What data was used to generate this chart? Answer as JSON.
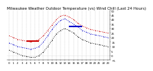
{
  "title": "Milwaukee Weather Outdoor Temperature (vs) Wind Chill (Last 24 Hours)",
  "bg_color": "#ffffff",
  "grid_color": "#888888",
  "hours": [
    0,
    1,
    2,
    3,
    4,
    5,
    6,
    7,
    8,
    9,
    10,
    11,
    12,
    13,
    14,
    15,
    16,
    17,
    18,
    19,
    20,
    21,
    22,
    23
  ],
  "temp": [
    22,
    20,
    18,
    17,
    16,
    15,
    16,
    18,
    22,
    28,
    34,
    40,
    44,
    45,
    43,
    40,
    36,
    33,
    31,
    29,
    28,
    27,
    26,
    25
  ],
  "windchill": [
    14,
    12,
    10,
    9,
    8,
    7,
    8,
    10,
    15,
    22,
    29,
    35,
    39,
    41,
    38,
    35,
    32,
    28,
    26,
    24,
    23,
    22,
    21,
    20
  ],
  "black": [
    6,
    4,
    2,
    0,
    -1,
    -2,
    -2,
    0,
    4,
    10,
    17,
    24,
    28,
    30,
    28,
    25,
    21,
    18,
    16,
    14,
    13,
    12,
    11,
    10
  ],
  "ylim": [
    -5,
    50
  ],
  "yticks": [
    -5,
    0,
    5,
    10,
    15,
    20,
    25,
    30,
    35,
    40,
    45,
    50
  ],
  "temp_color": "#cc0000",
  "windchill_color": "#0000cc",
  "black_color": "#111111",
  "red_hline_x": [
    4,
    7
  ],
  "red_hline_y": 16,
  "blue_hline_x": [
    14,
    17
  ],
  "blue_hline_y": 32,
  "title_fontsize": 4.0,
  "tick_fontsize": 2.8,
  "marker_size": 1.5,
  "line_width": 0.7
}
